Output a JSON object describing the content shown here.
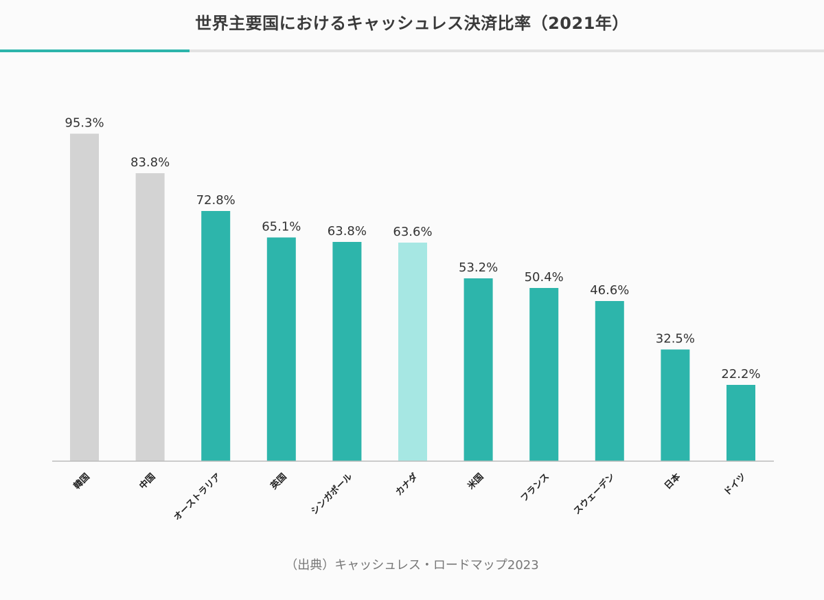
{
  "title": "世界主要国におけるキャッシュレス決済比率（2021年）",
  "source": "（出典）キャッシュレス・ロードマップ2023",
  "colors": {
    "title_rule_accent": "#2db5ab",
    "title_rule_base": "#e2e2e2",
    "axis": "#bbbbbb"
  },
  "chart_data": {
    "type": "bar",
    "title": "世界主要国におけるキャッシュレス決済比率（2021年）",
    "xlabel": "",
    "ylabel": "",
    "ylim": [
      0,
      100
    ],
    "grid": false,
    "categories": [
      "韓国",
      "中国",
      "オーストラリア",
      "英国",
      "シンガポール",
      "カナダ",
      "米国",
      "フランス",
      "スウェーデン",
      "日本",
      "ドイツ"
    ],
    "values": [
      95.3,
      83.8,
      72.8,
      65.1,
      63.8,
      63.6,
      53.2,
      50.4,
      46.6,
      32.5,
      22.2
    ],
    "value_labels": [
      "95.3%",
      "83.8%",
      "72.8%",
      "65.1%",
      "63.8%",
      "63.6%",
      "53.2%",
      "50.4%",
      "46.6%",
      "32.5%",
      "22.2%"
    ],
    "bar_colors": [
      "#d3d3d3",
      "#d3d3d3",
      "#2db5ab",
      "#2db5ab",
      "#2db5ab",
      "#a6e7e3",
      "#2db5ab",
      "#2db5ab",
      "#2db5ab",
      "#2db5ab",
      "#2db5ab"
    ]
  }
}
